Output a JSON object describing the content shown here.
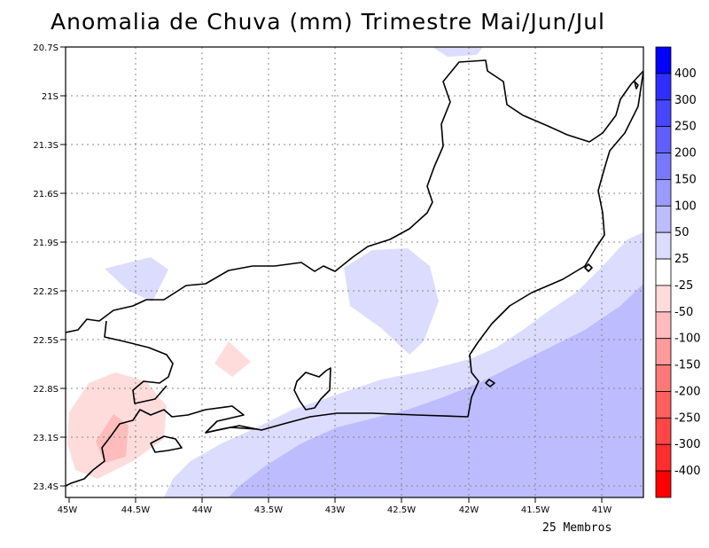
{
  "title": "Anomalia de Chuva (mm) Trimestre Mai/Jun/Jul",
  "footer": "25 Membros",
  "map": {
    "region": "Rio de Janeiro state, Brazil",
    "lon_range": [
      -45.0,
      -40.7
    ],
    "lat_range": [
      -23.45,
      -20.7
    ],
    "x_ticks": [
      {
        "label": "45W",
        "lon": -45.0
      },
      {
        "label": "44.5W",
        "lon": -44.5
      },
      {
        "label": "44W",
        "lon": -44.0
      },
      {
        "label": "43.5W",
        "lon": -43.5
      },
      {
        "label": "43W",
        "lon": -43.0
      },
      {
        "label": "42.5W",
        "lon": -42.5
      },
      {
        "label": "42W",
        "lon": -42.0
      },
      {
        "label": "41.5W",
        "lon": -41.5
      },
      {
        "label": "41W",
        "lon": -41.0
      }
    ],
    "y_ticks": [
      {
        "label": "20.7S",
        "lat": -20.7
      },
      {
        "label": "21S",
        "lat": -21.0
      },
      {
        "label": "21.3S",
        "lat": -21.3
      },
      {
        "label": "21.6S",
        "lat": -21.6
      },
      {
        "label": "21.9S",
        "lat": -21.9
      },
      {
        "label": "22.2S",
        "lat": -22.2
      },
      {
        "label": "22.5S",
        "lat": -22.5
      },
      {
        "label": "22.8S",
        "lat": -22.8
      },
      {
        "label": "23.1S",
        "lat": -23.1
      },
      {
        "label": "23.4S",
        "lat": -23.4
      }
    ]
  },
  "colorbar": {
    "labels": [
      "400",
      "300",
      "250",
      "200",
      "150",
      "100",
      "50",
      "25",
      "-25",
      "-50",
      "-100",
      "-150",
      "-200",
      "-250",
      "-300",
      "-400"
    ],
    "colors": [
      "#0000ff",
      "#2e2eff",
      "#4646ff",
      "#5f5fff",
      "#7878ff",
      "#9a9aff",
      "#bcbcff",
      "#dcdcff",
      "#ffffff",
      "#ffdcdc",
      "#ffbcbc",
      "#ff9a9a",
      "#ff7878",
      "#ff5f5f",
      "#ff4646",
      "#ff2e2e",
      "#ff0000"
    ]
  }
}
